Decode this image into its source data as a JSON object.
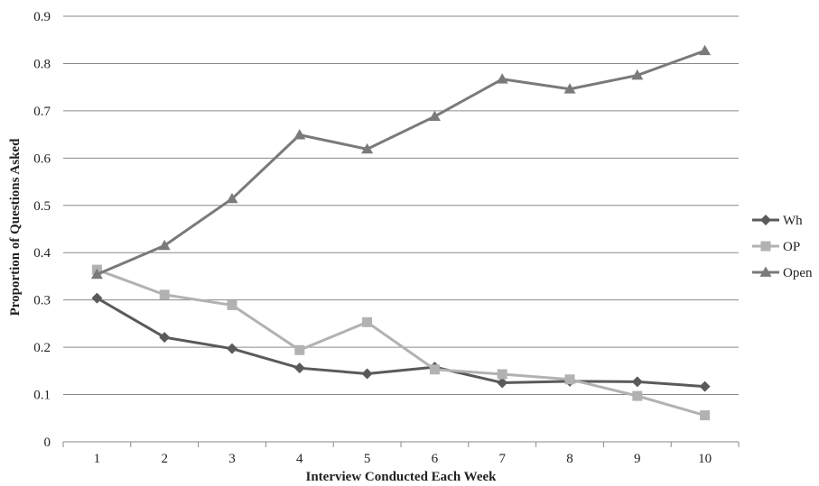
{
  "chart_data": {
    "type": "line",
    "title": "",
    "xlabel": "Interview Conducted Each Week",
    "ylabel": "Proportion of Questions Asked",
    "x": [
      1,
      2,
      3,
      4,
      5,
      6,
      7,
      8,
      9,
      10
    ],
    "x_tick_labels": [
      "1",
      "2",
      "3",
      "4",
      "5",
      "6",
      "7",
      "8",
      "9",
      "10"
    ],
    "y_tick_labels": [
      "0",
      "0.1",
      "0.2",
      "0.3",
      "0.4",
      "0.5",
      "0.6",
      "0.7",
      "0.8",
      "0.9"
    ],
    "ylim": [
      0,
      0.9
    ],
    "y_ticks": [
      0,
      0.1,
      0.2,
      0.3,
      0.4,
      0.5,
      0.6,
      0.7,
      0.8,
      0.9
    ],
    "grid": true,
    "legend_position": "right",
    "series": [
      {
        "name": "Wh",
        "marker": "diamond",
        "color": "#5a5a5a",
        "values": [
          0.304,
          0.221,
          0.197,
          0.156,
          0.144,
          0.158,
          0.125,
          0.128,
          0.127,
          0.117
        ]
      },
      {
        "name": "OP",
        "marker": "square",
        "color": "#b2b2b2",
        "values": [
          0.364,
          0.311,
          0.289,
          0.194,
          0.253,
          0.153,
          0.143,
          0.132,
          0.097,
          0.056
        ]
      },
      {
        "name": "Open",
        "marker": "triangle",
        "color": "#7a7a7a",
        "values": [
          0.354,
          0.415,
          0.514,
          0.649,
          0.619,
          0.688,
          0.767,
          0.746,
          0.775,
          0.827
        ]
      }
    ]
  }
}
